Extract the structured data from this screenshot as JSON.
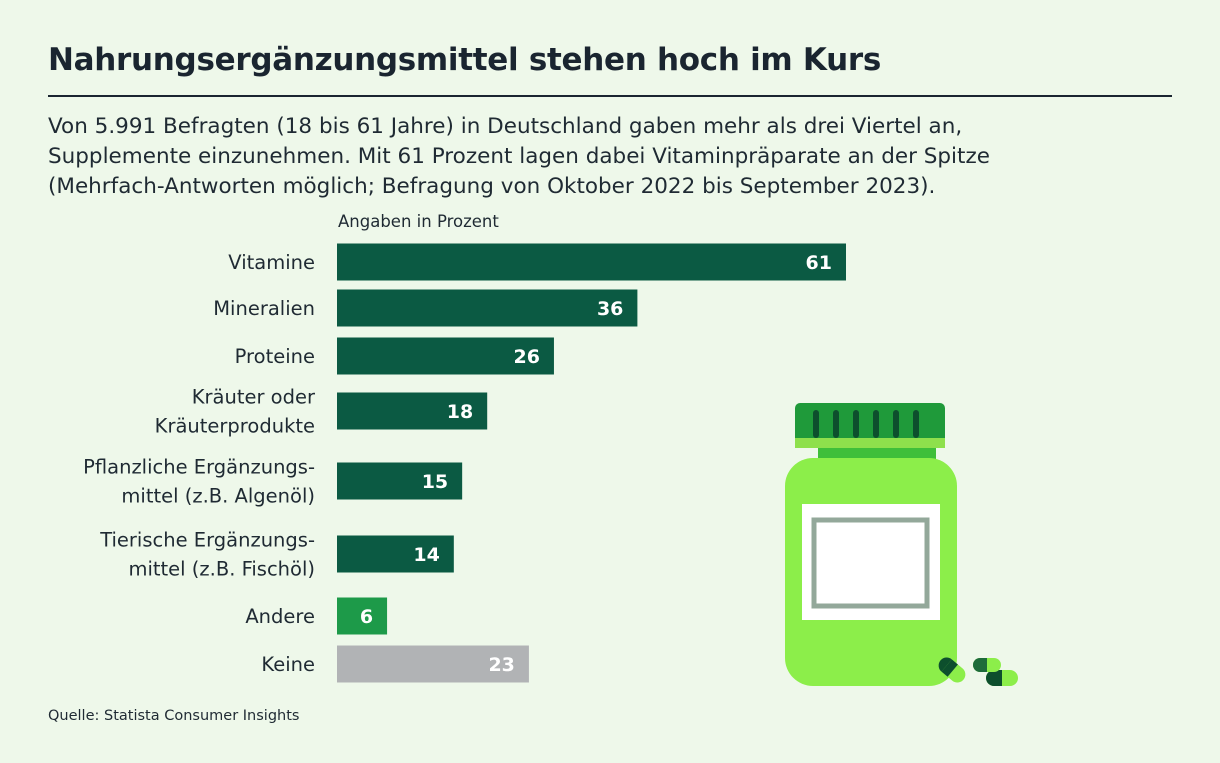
{
  "title": "Nahrungsergänzungsmittel stehen hoch im Kurs",
  "subtitle_lines": [
    "Von 5.991 Befragten (18 bis 61 Jahre) in Deutschland gaben mehr als drei Viertel an,",
    "Supplemente einzunehmen. Mit 61 Prozent lagen dabei Vitaminpräparate an der Spitze",
    "(Mehrfach-Antworten möglich; Befragung von Oktober 2022 bis September 2023)."
  ],
  "units_label": "Angaben in Prozent",
  "source": "Quelle: Statista Consumer Insights",
  "colors": {
    "dark_green": "#0b5a43",
    "bright_green": "#1d9a49",
    "grey": "#b1b3b5",
    "background": "#eef8ea"
  },
  "chart_data": {
    "type": "bar",
    "orientation": "horizontal",
    "title": "Nahrungsergänzungsmittel stehen hoch im Kurs",
    "xlabel": "Angaben in Prozent",
    "ylabel": "",
    "xlim": [
      0,
      61
    ],
    "grid": false,
    "categories": [
      {
        "lines": [
          "Vitamine"
        ],
        "value": 61,
        "color": "#0b5a43"
      },
      {
        "lines": [
          "Mineralien"
        ],
        "value": 36,
        "color": "#0b5a43"
      },
      {
        "lines": [
          "Proteine"
        ],
        "value": 26,
        "color": "#0b5a43"
      },
      {
        "lines": [
          "Kräuter oder",
          "Kräuterprodukte"
        ],
        "value": 18,
        "color": "#0b5a43"
      },
      {
        "lines": [
          "Pflanzliche Ergänzungs-",
          "mittel (z.B. Algenöl)"
        ],
        "value": 15,
        "color": "#0b5a43"
      },
      {
        "lines": [
          "Tierische Ergänzungs-",
          "mittel (z.B. Fischöl)"
        ],
        "value": 14,
        "color": "#0b5a43"
      },
      {
        "lines": [
          "Andere"
        ],
        "value": 6,
        "color": "#1d9a49"
      },
      {
        "lines": [
          "Keine"
        ],
        "value": 23,
        "color": "#b1b3b5"
      }
    ]
  },
  "illustration": {
    "icon": "supplement-jar-icon"
  }
}
